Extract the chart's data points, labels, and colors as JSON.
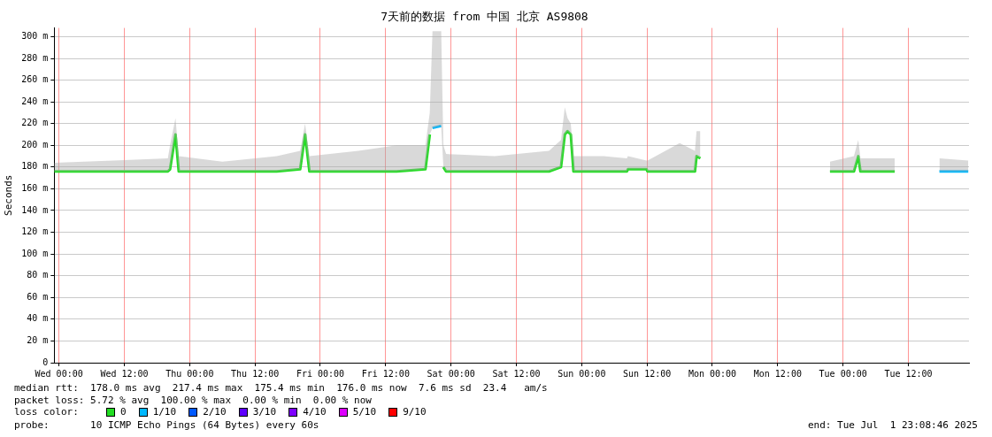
{
  "chart_data": {
    "type": "line",
    "title": "7天前的数据 from 中国 北京 AS9808",
    "ylabel": "Seconds",
    "legend_title": "loss color:",
    "legend": "bottom left",
    "grid": true,
    "marker": "none",
    "line_style": "solid",
    "x": [
      "2025-06-24T23:08",
      "2025-06-25T10:00",
      "2025-06-25T20:00",
      "2025-06-25T20:24",
      "2025-06-25T21:24",
      "2025-06-25T22:00",
      "2025-06-26T06:00",
      "2025-06-26T16:00",
      "2025-06-26T20:18",
      "2025-06-26T21:12",
      "2025-06-26T22:00",
      "2025-06-27T07:00",
      "2025-06-27T14:00",
      "2025-06-27T19:18",
      "2025-06-27T20:06",
      "2025-06-27T20:36",
      "2025-06-27T22:12",
      "2025-06-27T22:36",
      "2025-06-27T23:06",
      "2025-06-28T08:00",
      "2025-06-28T18:00",
      "2025-06-28T20:12",
      "2025-06-28T20:54",
      "2025-06-28T21:24",
      "2025-06-28T22:00",
      "2025-06-28T22:30",
      "2025-06-29T04:00",
      "2025-06-29T08:18",
      "2025-06-29T08:30",
      "2025-06-29T11:54",
      "2025-06-29T12:06",
      "2025-06-29T18:00",
      "2025-06-29T20:48",
      "2025-06-29T21:06",
      "2025-06-29T21:48",
      "2025-06-30T10:00",
      "2025-06-30T21:36",
      "2025-07-01T02:00",
      "2025-07-01T02:48",
      "2025-07-01T03:12",
      "2025-07-01T09:30",
      "2025-07-01T13:00",
      "2025-07-01T17:42",
      "2025-07-01T23:00"
    ],
    "xlim": [
      "2025-06-24T23:08",
      "2025-07-01T23:08"
    ],
    "xticks": [
      {
        "value": "2025-06-25T00:00",
        "label": "Wed 00:00"
      },
      {
        "value": "2025-06-25T12:00",
        "label": "Wed 12:00"
      },
      {
        "value": "2025-06-26T00:00",
        "label": "Thu 00:00"
      },
      {
        "value": "2025-06-26T12:00",
        "label": "Thu 12:00"
      },
      {
        "value": "2025-06-27T00:00",
        "label": "Fri 00:00"
      },
      {
        "value": "2025-06-27T12:00",
        "label": "Fri 12:00"
      },
      {
        "value": "2025-06-28T00:00",
        "label": "Sat 00:00"
      },
      {
        "value": "2025-06-28T12:00",
        "label": "Sat 12:00"
      },
      {
        "value": "2025-06-29T00:00",
        "label": "Sun 00:00"
      },
      {
        "value": "2025-06-29T12:00",
        "label": "Sun 12:00"
      },
      {
        "value": "2025-06-30T00:00",
        "label": "Mon 00:00"
      },
      {
        "value": "2025-06-30T12:00",
        "label": "Mon 12:00"
      },
      {
        "value": "2025-07-01T00:00",
        "label": "Tue 00:00"
      },
      {
        "value": "2025-07-01T12:00",
        "label": "Tue 12:00"
      }
    ],
    "ylim": [
      0,
      308
    ],
    "yticks": [
      0,
      {
        "value": 20,
        "label": "20 m"
      },
      {
        "value": 40,
        "label": "40 m"
      },
      {
        "value": 60,
        "label": "60 m"
      },
      {
        "value": 80,
        "label": "80 m"
      },
      {
        "value": 100,
        "label": "100 m"
      },
      {
        "value": 120,
        "label": "120 m"
      },
      {
        "value": 140,
        "label": "140 m"
      },
      {
        "value": 160,
        "label": "160 m"
      },
      {
        "value": 180,
        "label": "180 m"
      },
      {
        "value": 200,
        "label": "200 m"
      },
      {
        "value": 220,
        "label": "220 m"
      },
      {
        "value": 240,
        "label": "240 m"
      },
      {
        "value": 260,
        "label": "260 m"
      },
      {
        "value": 280,
        "label": "280 m"
      },
      {
        "value": 300,
        "label": "300 m"
      }
    ],
    "series": [
      {
        "name": "0",
        "color": "#22dd22",
        "values": [
          176,
          176,
          176,
          178,
          210,
          176,
          176,
          176,
          178,
          210,
          176,
          176,
          176,
          178,
          210,
          null,
          null,
          180,
          176,
          176,
          176,
          180,
          210,
          213,
          210,
          176,
          176,
          176,
          178,
          178,
          176,
          176,
          176,
          190,
          188,
          null,
          176,
          176,
          190,
          176,
          176,
          null,
          null,
          null
        ],
        "lower": [
          176,
          176,
          176,
          178,
          210,
          176,
          176,
          176,
          178,
          210,
          176,
          176,
          176,
          178,
          210,
          216,
          218,
          180,
          176,
          176,
          176,
          180,
          210,
          213,
          210,
          176,
          176,
          176,
          178,
          178,
          176,
          176,
          176,
          190,
          188,
          null,
          176,
          176,
          190,
          176,
          176,
          null,
          176,
          176
        ],
        "upper": [
          184,
          186,
          188,
          200,
          225,
          190,
          185,
          190,
          195,
          220,
          190,
          195,
          200,
          200,
          230,
          305,
          305,
          200,
          192,
          190,
          195,
          205,
          235,
          225,
          220,
          190,
          190,
          188,
          190,
          186,
          186,
          202,
          195,
          213,
          213,
          null,
          185,
          190,
          205,
          188,
          188,
          null,
          188,
          186
        ]
      },
      {
        "name": "1/10",
        "color": "#00b8ff",
        "values": [
          null,
          null,
          null,
          null,
          null,
          null,
          null,
          null,
          null,
          null,
          null,
          null,
          null,
          null,
          null,
          216,
          218,
          null,
          null,
          null,
          null,
          null,
          null,
          null,
          null,
          null,
          null,
          null,
          null,
          null,
          null,
          null,
          null,
          null,
          null,
          null,
          null,
          null,
          null,
          null,
          null,
          null,
          176,
          176
        ]
      },
      {
        "name": "2/10",
        "color": "#0059ff",
        "values": [
          null,
          null,
          null,
          null,
          null,
          null,
          null,
          null,
          null,
          null,
          null,
          null,
          null,
          null,
          null,
          null,
          null,
          null,
          null,
          null,
          null,
          null,
          null,
          null,
          null,
          null,
          null,
          null,
          null,
          null,
          null,
          null,
          null,
          null,
          null,
          null,
          null,
          null,
          null,
          null,
          null,
          null,
          null,
          null
        ]
      },
      {
        "name": "3/10",
        "color": "#5e00ff",
        "values": [
          null,
          null,
          null,
          null,
          null,
          null,
          null,
          null,
          null,
          null,
          null,
          null,
          null,
          null,
          null,
          null,
          null,
          null,
          null,
          null,
          null,
          null,
          null,
          null,
          null,
          null,
          null,
          null,
          null,
          null,
          null,
          null,
          null,
          null,
          null,
          null,
          null,
          null,
          null,
          null,
          null,
          null,
          null,
          null
        ]
      },
      {
        "name": "4/10",
        "color": "#7e00ff",
        "values": [
          null,
          null,
          null,
          null,
          null,
          null,
          null,
          null,
          null,
          null,
          null,
          null,
          null,
          null,
          null,
          null,
          null,
          null,
          null,
          null,
          null,
          null,
          null,
          null,
          null,
          null,
          null,
          null,
          null,
          null,
          null,
          null,
          null,
          null,
          null,
          null,
          null,
          null,
          null,
          null,
          null,
          null,
          null,
          null
        ]
      },
      {
        "name": "5/10",
        "color": "#dd00ff",
        "values": [
          null,
          null,
          null,
          null,
          null,
          null,
          null,
          null,
          null,
          null,
          null,
          null,
          null,
          null,
          null,
          null,
          null,
          null,
          null,
          null,
          null,
          null,
          null,
          null,
          null,
          null,
          null,
          null,
          null,
          null,
          null,
          null,
          null,
          null,
          null,
          null,
          null,
          null,
          null,
          null,
          null,
          null,
          null,
          null
        ]
      },
      {
        "name": "9/10",
        "color": "#ff0000",
        "values": [
          null,
          null,
          null,
          null,
          null,
          null,
          null,
          null,
          null,
          null,
          null,
          null,
          null,
          null,
          null,
          null,
          null,
          null,
          null,
          null,
          null,
          null,
          null,
          null,
          null,
          null,
          null,
          null,
          null,
          null,
          null,
          null,
          null,
          null,
          null,
          null,
          null,
          null,
          null,
          null,
          null,
          null,
          null,
          null
        ]
      }
    ],
    "annotations": [
      "median rtt:  178.0 ms avg  217.4 ms max  175.4 ms min  176.0 ms now  7.6 ms sd  23.4   am/s",
      "packet loss: 5.72 % avg  100.00 % max  0.00 % min  0.00 % now",
      "probe:       10 ICMP Echo Pings (64 Bytes) every 60s",
      "end: Tue Jul  1 23:08:46 2025"
    ]
  }
}
